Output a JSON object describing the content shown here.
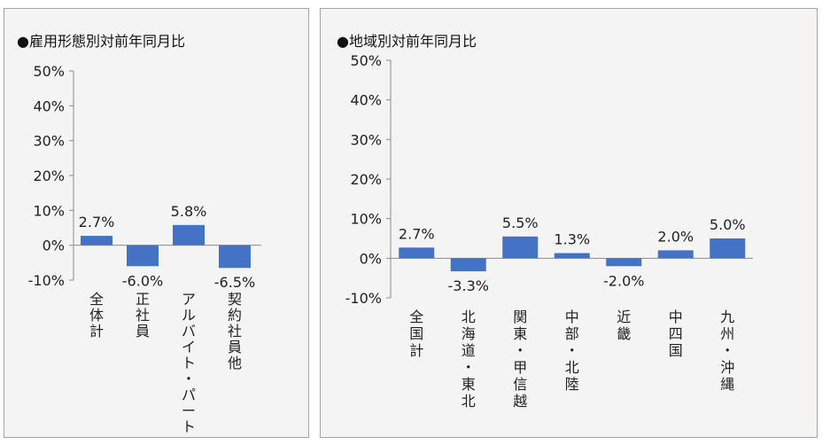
{
  "chart_data": [
    {
      "type": "bar",
      "title": "●雇用形態別対前年同月比",
      "categories": [
        "全体計",
        "正社員",
        "アルバイト・パート",
        "契約社員他"
      ],
      "values": [
        2.7,
        -6.0,
        5.8,
        -6.5
      ],
      "value_labels": [
        "2.7%",
        "-6.0%",
        "5.8%",
        "-6.5%"
      ],
      "ylim": [
        -10,
        50
      ],
      "yticks": [
        50,
        40,
        30,
        20,
        10,
        0,
        -10
      ],
      "ytick_labels": [
        "50%",
        "40%",
        "30%",
        "20%",
        "10%",
        "0%",
        "-10%"
      ],
      "grid": false,
      "bar_color": "#4472c4"
    },
    {
      "type": "bar",
      "title": "●地域別対前年同月比",
      "categories": [
        "全国計",
        "北海道・東北",
        "関東・甲信越",
        "中部・北陸",
        "近畿",
        "中四国",
        "九州・沖縄"
      ],
      "values": [
        2.7,
        -3.3,
        5.5,
        1.3,
        -2.0,
        2.0,
        5.0
      ],
      "value_labels": [
        "2.7%",
        "-3.3%",
        "5.5%",
        "1.3%",
        "-2.0%",
        "2.0%",
        "5.0%"
      ],
      "ylim": [
        -10,
        50
      ],
      "yticks": [
        50,
        40,
        30,
        20,
        10,
        0,
        -10
      ],
      "ytick_labels": [
        "50%",
        "40%",
        "30%",
        "20%",
        "10%",
        "0%",
        "-10%"
      ],
      "grid": false,
      "bar_color": "#4472c4"
    }
  ]
}
